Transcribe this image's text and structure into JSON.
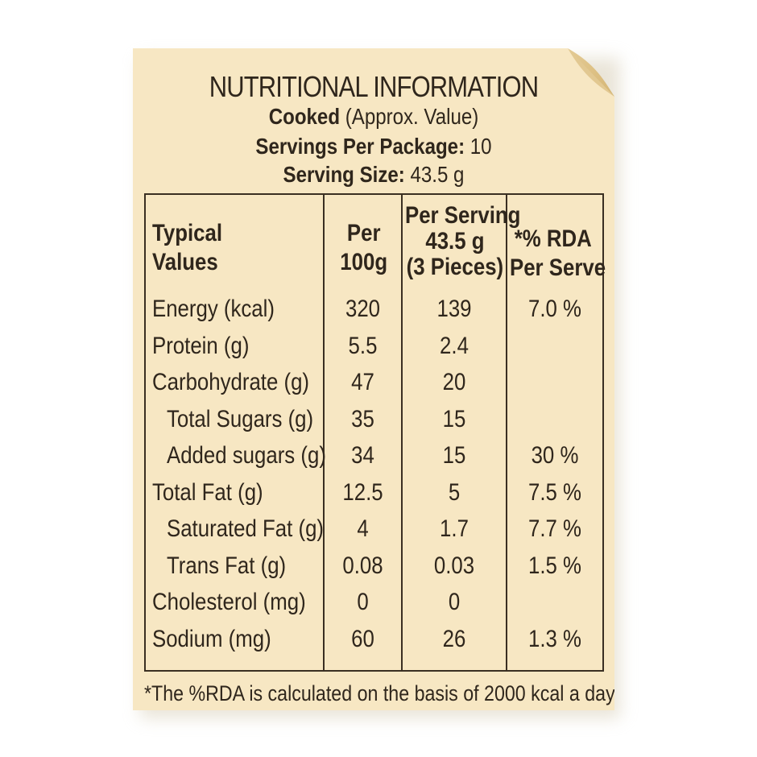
{
  "label": {
    "title": "NUTRITIONAL INFORMATION",
    "cooked_bold": "Cooked",
    "cooked_rest": "(Approx. Value)",
    "servings_label": "Servings Per Package:",
    "servings_value": "10",
    "serving_size_label": "Serving Size:",
    "serving_size_value": "43.5 g",
    "footnote": "*The %RDA is calculated on the basis of 2000 kcal a day."
  },
  "table": {
    "headers": {
      "typical_1": "Typical",
      "typical_2": "Values",
      "per100_1": "Per",
      "per100_2": "100g",
      "serving_1": "Per Serving",
      "serving_2": "43.5 g",
      "serving_3": "(3 Pieces)",
      "rda_1": "*% RDA",
      "rda_2": "Per Serve"
    },
    "rows": [
      {
        "name": "Energy (kcal)",
        "per100": "320",
        "serving": "139",
        "rda": "7.0 %"
      },
      {
        "name": "Protein (g)",
        "per100": "5.5",
        "serving": "2.4",
        "rda": ""
      },
      {
        "name": "Carbohydrate (g)",
        "per100": "47",
        "serving": "20",
        "rda": ""
      },
      {
        "name": "Total Sugars (g)",
        "per100": "35",
        "serving": "15",
        "rda": ""
      },
      {
        "name": "Added sugars (g)",
        "per100": "34",
        "serving": "15",
        "rda": "30 %"
      },
      {
        "name": "Total Fat (g)",
        "per100": "12.5",
        "serving": "5",
        "rda": "7.5 %"
      },
      {
        "name": "Saturated Fat (g)",
        "per100": "4",
        "serving": "1.7",
        "rda": "7.7 %"
      },
      {
        "name": "Trans Fat (g)",
        "per100": "0.08",
        "serving": "0.03",
        "rda": "1.5 %"
      },
      {
        "name": "Cholesterol (mg)",
        "per100": "0",
        "serving": "0",
        "rda": ""
      },
      {
        "name": "Sodium (mg)",
        "per100": "60",
        "serving": "26",
        "rda": "1.3 %"
      }
    ]
  },
  "colors": {
    "paper": "#f7e7c3",
    "ink": "#2f261c",
    "curl": "#e6c98f"
  }
}
